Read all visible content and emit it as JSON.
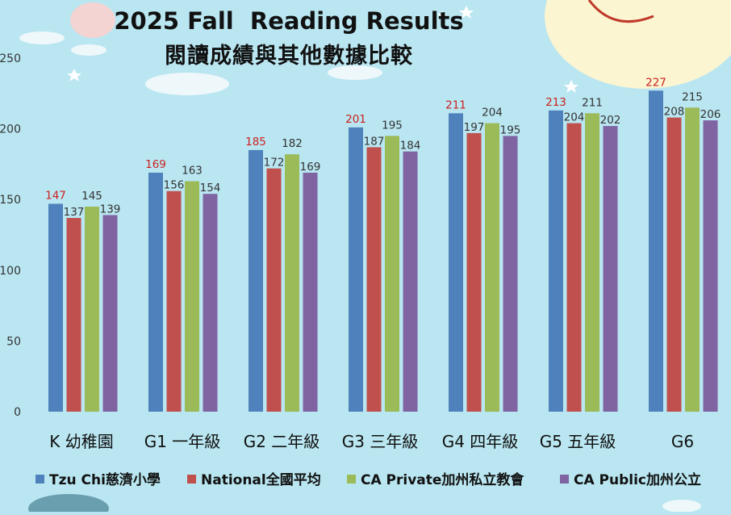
{
  "chart_data": {
    "type": "bar",
    "title": "2025 Fall  Reading Results",
    "subtitle": "閱讀成績與其他數據比較",
    "categories": [
      "K 幼稚園",
      "G1 一年級",
      "G2 二年級",
      "G3 三年級",
      "G4 四年級",
      "G5 五年級",
      "G6"
    ],
    "series": [
      {
        "name": "Tzu Chi慈濟小學",
        "color": "#4f81bd",
        "values": [
          147,
          169,
          185,
          201,
          211,
          213,
          227
        ],
        "label_color": "#cc1f1f"
      },
      {
        "name": "National全國平均",
        "color": "#c0504d",
        "values": [
          137,
          156,
          172,
          187,
          197,
          204,
          208
        ]
      },
      {
        "name": "CA Private加州私立教會",
        "color": "#9bbb59",
        "values": [
          145,
          163,
          182,
          195,
          204,
          211,
          215
        ]
      },
      {
        "name": "CA Public加州公立",
        "color": "#8064a2",
        "values": [
          139,
          154,
          169,
          184,
          195,
          202,
          206
        ]
      }
    ],
    "yticks": [
      0,
      50,
      100,
      150,
      200,
      250
    ],
    "ylim": [
      0,
      250
    ],
    "grid": false,
    "legend_position": "bottom",
    "data_labels": true
  }
}
